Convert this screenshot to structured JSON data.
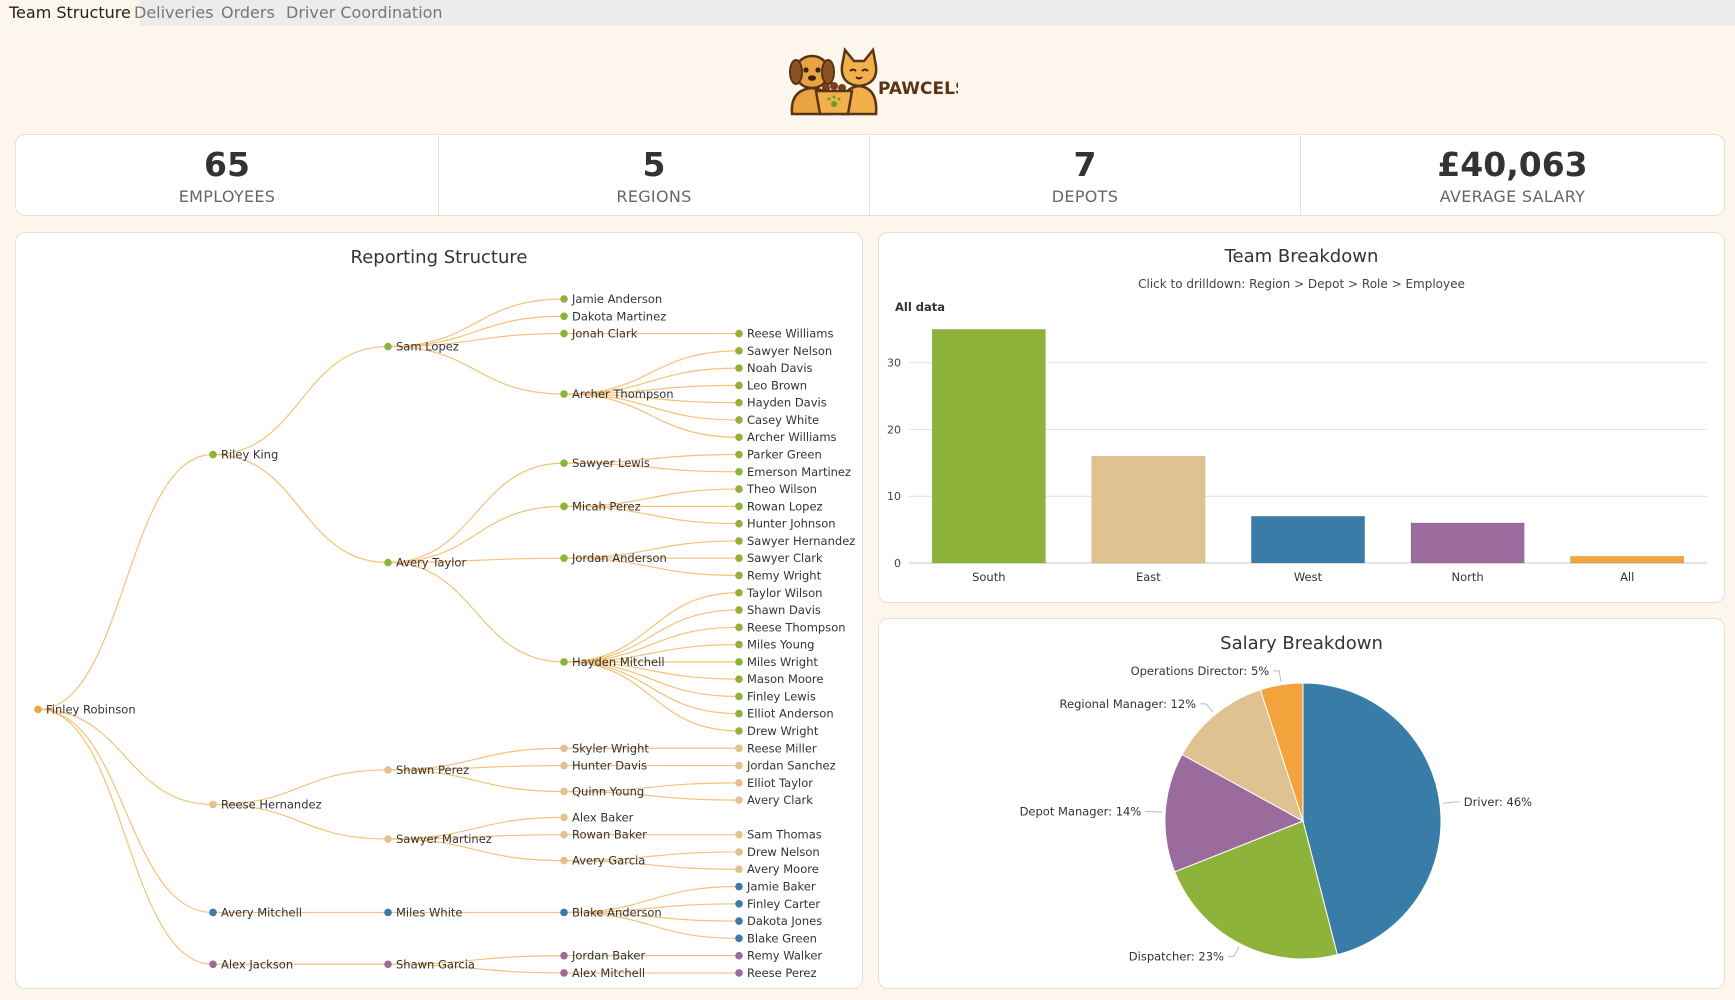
{
  "tabs": [
    "Team Structure",
    "Deliveries",
    "Orders",
    "Driver Coordination"
  ],
  "logo": {
    "text": "PAWCELS"
  },
  "kpis": [
    {
      "value": "65",
      "label": "EMPLOYEES"
    },
    {
      "value": "5",
      "label": "REGIONS"
    },
    {
      "value": "7",
      "label": "DEPOTS"
    },
    {
      "value": "£40,063",
      "label": "AVERAGE SALARY"
    }
  ],
  "reporting": {
    "title": "Reporting Structure",
    "colors": {
      "south": "#8db33a",
      "east": "#dfc290",
      "west": "#3a7ca8",
      "north": "#9b6b9e",
      "root": "#f2a33c",
      "link": "#f5c27a"
    },
    "tree": {
      "name": "Finley Robinson",
      "c": "root",
      "children": [
        {
          "name": "Riley King",
          "c": "south",
          "children": [
            {
              "name": "Sam Lopez",
              "c": "south",
              "children": [
                {
                  "name": "Jamie Anderson",
                  "c": "south"
                },
                {
                  "name": "Dakota Martinez",
                  "c": "south"
                },
                {
                  "name": "Jonah Clark",
                  "c": "south",
                  "children": [
                    {
                      "name": "Reese Williams",
                      "c": "south"
                    }
                  ]
                },
                {
                  "name": "Archer Thompson",
                  "c": "south",
                  "children": [
                    {
                      "name": "Sawyer Nelson",
                      "c": "south"
                    },
                    {
                      "name": "Noah Davis",
                      "c": "south"
                    },
                    {
                      "name": "Leo Brown",
                      "c": "south"
                    },
                    {
                      "name": "Hayden Davis",
                      "c": "south"
                    },
                    {
                      "name": "Casey White",
                      "c": "south"
                    },
                    {
                      "name": "Archer Williams",
                      "c": "south"
                    }
                  ]
                }
              ]
            },
            {
              "name": "Avery Taylor",
              "c": "south",
              "children": [
                {
                  "name": "Sawyer Lewis",
                  "c": "south",
                  "children": [
                    {
                      "name": "Parker Green",
                      "c": "south"
                    },
                    {
                      "name": "Emerson Martinez",
                      "c": "south"
                    }
                  ]
                },
                {
                  "name": "Micah Perez",
                  "c": "south",
                  "children": [
                    {
                      "name": "Theo Wilson",
                      "c": "south"
                    },
                    {
                      "name": "Rowan Lopez",
                      "c": "south"
                    },
                    {
                      "name": "Hunter Johnson",
                      "c": "south"
                    }
                  ]
                },
                {
                  "name": "Jordan Anderson",
                  "c": "south",
                  "children": [
                    {
                      "name": "Sawyer Hernandez",
                      "c": "south"
                    },
                    {
                      "name": "Sawyer Clark",
                      "c": "south"
                    },
                    {
                      "name": "Remy Wright",
                      "c": "south"
                    }
                  ]
                },
                {
                  "name": "Hayden Mitchell",
                  "c": "south",
                  "children": [
                    {
                      "name": "Taylor Wilson",
                      "c": "south"
                    },
                    {
                      "name": "Shawn Davis",
                      "c": "south"
                    },
                    {
                      "name": "Reese Thompson",
                      "c": "south"
                    },
                    {
                      "name": "Miles Young",
                      "c": "south"
                    },
                    {
                      "name": "Miles Wright",
                      "c": "south"
                    },
                    {
                      "name": "Mason Moore",
                      "c": "south"
                    },
                    {
                      "name": "Finley Lewis",
                      "c": "south"
                    },
                    {
                      "name": "Elliot Anderson",
                      "c": "south"
                    },
                    {
                      "name": "Drew Wright",
                      "c": "south"
                    }
                  ]
                }
              ]
            }
          ]
        },
        {
          "name": "Reese Hernandez",
          "c": "east",
          "children": [
            {
              "name": "Shawn Perez",
              "c": "east",
              "children": [
                {
                  "name": "Skyler Wright",
                  "c": "east",
                  "children": [
                    {
                      "name": "Reese Miller",
                      "c": "east"
                    }
                  ]
                },
                {
                  "name": "Hunter Davis",
                  "c": "east",
                  "children": [
                    {
                      "name": "Jordan Sanchez",
                      "c": "east"
                    }
                  ]
                },
                {
                  "name": "Quinn Young",
                  "c": "east",
                  "children": [
                    {
                      "name": "Elliot Taylor",
                      "c": "east"
                    },
                    {
                      "name": "Avery Clark",
                      "c": "east"
                    }
                  ]
                }
              ]
            },
            {
              "name": "Sawyer Martinez",
              "c": "east",
              "children": [
                {
                  "name": "Alex Baker",
                  "c": "east"
                },
                {
                  "name": "Rowan Baker",
                  "c": "east",
                  "children": [
                    {
                      "name": "Sam Thomas",
                      "c": "east"
                    }
                  ]
                },
                {
                  "name": "Avery Garcia",
                  "c": "east",
                  "children": [
                    {
                      "name": "Drew Nelson",
                      "c": "east"
                    },
                    {
                      "name": "Avery Moore",
                      "c": "east"
                    }
                  ]
                }
              ]
            }
          ]
        },
        {
          "name": "Avery Mitchell",
          "c": "west",
          "children": [
            {
              "name": "Miles White",
              "c": "west",
              "children": [
                {
                  "name": "Blake Anderson",
                  "c": "west",
                  "children": [
                    {
                      "name": "Jamie Baker",
                      "c": "west"
                    },
                    {
                      "name": "Finley Carter",
                      "c": "west"
                    },
                    {
                      "name": "Dakota Jones",
                      "c": "west"
                    },
                    {
                      "name": "Blake Green",
                      "c": "west"
                    }
                  ]
                }
              ]
            }
          ]
        },
        {
          "name": "Alex Jackson",
          "c": "north",
          "children": [
            {
              "name": "Shawn Garcia",
              "c": "north",
              "children": [
                {
                  "name": "Jordan Baker",
                  "c": "north",
                  "children": [
                    {
                      "name": "Remy Walker",
                      "c": "north"
                    }
                  ]
                },
                {
                  "name": "Alex Mitchell",
                  "c": "north",
                  "children": [
                    {
                      "name": "Reese Perez",
                      "c": "north"
                    }
                  ]
                }
              ]
            }
          ]
        }
      ]
    }
  },
  "team_breakdown": {
    "title": "Team Breakdown",
    "subtitle": "Click to drilldown: Region > Depot > Role > Employee",
    "breadcrumb": "All data"
  },
  "salary_breakdown": {
    "title": "Salary Breakdown"
  },
  "chart_data": [
    {
      "type": "bar",
      "title": "Team Breakdown",
      "categories": [
        "South",
        "East",
        "West",
        "North",
        "All"
      ],
      "values": [
        35,
        16,
        7,
        6,
        1
      ],
      "colors": [
        "#8db33a",
        "#dfc290",
        "#3a7ca8",
        "#9b6b9e",
        "#f2a33c"
      ],
      "ylim": [
        0,
        37
      ],
      "yticks": [
        0,
        10,
        20,
        30
      ],
      "xlabel": "",
      "ylabel": ""
    },
    {
      "type": "pie",
      "title": "Salary Breakdown",
      "slices": [
        {
          "label": "Driver",
          "value": 46,
          "display": "Driver: 46%",
          "color": "#3a7ca8"
        },
        {
          "label": "Dispatcher",
          "value": 23,
          "display": "Dispatcher: 23%",
          "color": "#8db33a"
        },
        {
          "label": "Depot Manager",
          "value": 14,
          "display": "Depot Manager: 14%",
          "color": "#9b6b9e"
        },
        {
          "label": "Regional Manager",
          "value": 12,
          "display": "Regional Manager: 12%",
          "color": "#dfc290"
        },
        {
          "label": "Operations Director",
          "value": 5,
          "display": "Operations Director: 5%",
          "color": "#f2a33c"
        }
      ]
    }
  ]
}
